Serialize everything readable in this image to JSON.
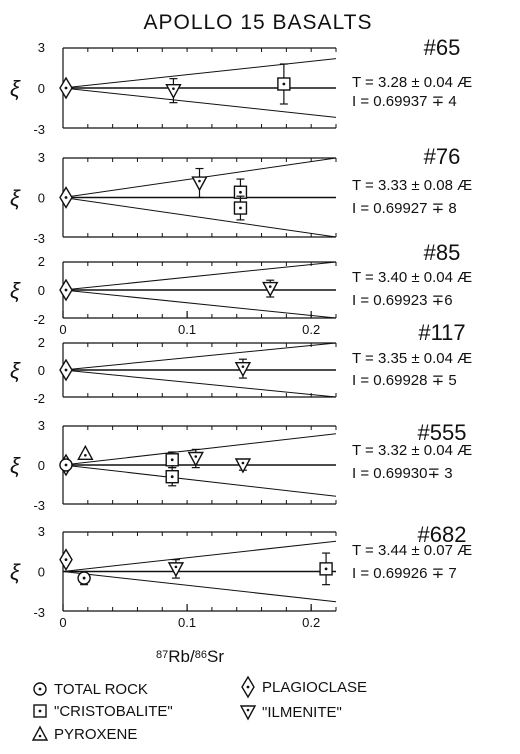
{
  "chart_data": {
    "type": "scatter",
    "title": "APOLLO 15 BASALTS",
    "ylabel": "ξ",
    "xlabel_parts": {
      "sup1": "87",
      "main1": "Rb/",
      "sup2": "86",
      "main2": "Sr"
    },
    "xlim": [
      0,
      0.22
    ],
    "x_ticks": [
      "0",
      "0.1",
      "0.2"
    ],
    "legend": [
      {
        "symbol": "circle",
        "label": "TOTAL ROCK"
      },
      {
        "symbol": "diamond",
        "label": "PLAGIOCLASE"
      },
      {
        "symbol": "square",
        "label": "\"CRISTOBALITE\""
      },
      {
        "symbol": "triangle-down",
        "label": "\"ILMENITE\""
      },
      {
        "symbol": "triangle-up",
        "label": "PYROXENE"
      }
    ],
    "panels": [
      {
        "sample": "#65",
        "age": "T = 3.28 ± 0.04 Æ",
        "initial": "I = 0.69937 ∓ 4",
        "ylim": [
          -3,
          3
        ],
        "y_ticks": [
          "3",
          "0",
          "-3"
        ],
        "envelope": 2.2,
        "x_ticks_shown": false,
        "points": [
          {
            "symbol": "diamond",
            "x": 0.0,
            "y": 0.0,
            "err": 0
          },
          {
            "symbol": "triangle-down",
            "x": 0.089,
            "y": -0.2,
            "err": 0.9
          },
          {
            "symbol": "square",
            "x": 0.178,
            "y": 0.3,
            "err": 1.5
          }
        ]
      },
      {
        "sample": "#76",
        "age": "T = 3.33 ± 0.08 Æ",
        "initial": "I = 0.69927 ∓ 8",
        "ylim": [
          -3,
          3
        ],
        "y_ticks": [
          "3",
          "0",
          "-3"
        ],
        "envelope": 3.0,
        "x_ticks_shown": false,
        "points": [
          {
            "symbol": "diamond",
            "x": 0.0,
            "y": 0.0,
            "err": 0
          },
          {
            "symbol": "triangle-down",
            "x": 0.11,
            "y": 1.1,
            "err": 1.1
          },
          {
            "symbol": "square",
            "x": 0.143,
            "y": 0.4,
            "err": 1.0
          },
          {
            "symbol": "square",
            "x": 0.143,
            "y": -0.8,
            "err": 0.9
          }
        ]
      },
      {
        "sample": "#85",
        "age": "T = 3.40 ± 0.04 Æ",
        "initial": "I = 0.69923 ∓6",
        "ylim": [
          -2,
          2
        ],
        "y_ticks": [
          "2",
          "0",
          "-2"
        ],
        "envelope": 2.0,
        "x_ticks_shown": true,
        "points": [
          {
            "symbol": "diamond",
            "x": 0.0,
            "y": 0.0,
            "err": 0
          },
          {
            "symbol": "triangle-down",
            "x": 0.167,
            "y": 0.1,
            "err": 0.6
          }
        ]
      },
      {
        "sample": "#117",
        "age": "T = 3.35 ± 0.04 Æ",
        "initial": "I = 0.69928 ∓ 5",
        "ylim": [
          -2,
          2
        ],
        "y_ticks": [
          "2",
          "0",
          "-2"
        ],
        "envelope": 2.0,
        "x_ticks_shown": false,
        "points": [
          {
            "symbol": "diamond",
            "x": 0.0,
            "y": 0.0,
            "err": 0
          },
          {
            "symbol": "triangle-down",
            "x": 0.145,
            "y": 0.1,
            "err": 0.7
          }
        ]
      },
      {
        "sample": "#555",
        "age": "T = 3.32 ± 0.04 Æ",
        "initial": "I = 0.69930∓ 3",
        "ylim": [
          -3,
          3
        ],
        "y_ticks": [
          "3",
          "0",
          "-3"
        ],
        "envelope": 2.4,
        "x_ticks_shown": false,
        "points": [
          {
            "symbol": "diamond",
            "x": 0.0,
            "y": 0.0,
            "err": 0
          },
          {
            "symbol": "circle",
            "x": 0.0,
            "y": 0.0,
            "err": 0
          },
          {
            "symbol": "triangle-up",
            "x": 0.018,
            "y": 0.9,
            "err": 0
          },
          {
            "symbol": "square",
            "x": 0.088,
            "y": 0.4,
            "err": 0.6
          },
          {
            "symbol": "square",
            "x": 0.088,
            "y": -0.9,
            "err": 0.7
          },
          {
            "symbol": "triangle-down",
            "x": 0.107,
            "y": 0.5,
            "err": 0.7
          },
          {
            "symbol": "triangle-down",
            "x": 0.145,
            "y": 0.0,
            "err": 0.4
          }
        ]
      },
      {
        "sample": "#682",
        "age": "T = 3.44 ± 0.07 Æ",
        "initial": "I = 0.69926 ∓ 7",
        "ylim": [
          -3,
          3
        ],
        "y_ticks": [
          "3",
          "0",
          "-3"
        ],
        "envelope": 2.3,
        "x_ticks_shown": true,
        "points": [
          {
            "symbol": "diamond",
            "x": 0.0,
            "y": 0.9,
            "err": 0
          },
          {
            "symbol": "circle",
            "x": 0.017,
            "y": -0.5,
            "err": 0.5
          },
          {
            "symbol": "triangle-down",
            "x": 0.091,
            "y": 0.2,
            "err": 0.7
          },
          {
            "symbol": "square",
            "x": 0.212,
            "y": 0.2,
            "err": 1.2
          }
        ]
      }
    ]
  }
}
